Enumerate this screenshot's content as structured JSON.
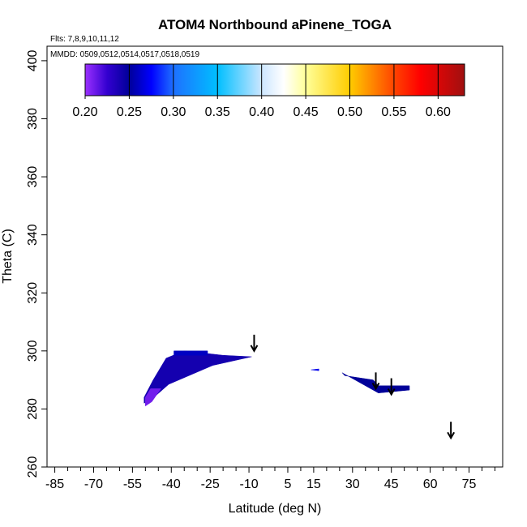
{
  "chart_data": {
    "type": "heatmap",
    "title": "ATOM4 Northbound aPinene_TOGA",
    "flights_note": "Flts: 7,8,9,10,11,12",
    "dates_note": "MMDD: 0509,0512,0514,0517,0518,0519",
    "xlabel": "Latitude (deg N)",
    "ylabel": "Theta (C)",
    "xlim": [
      -88,
      88
    ],
    "ylim": [
      260,
      405
    ],
    "x_ticks": [
      -85,
      -70,
      -55,
      -40,
      -25,
      -10,
      5,
      15,
      30,
      45,
      60,
      75
    ],
    "x_tick_labels": [
      "-85",
      "-70",
      "-55",
      "-40",
      "-25",
      "-10",
      "5",
      "15",
      "30",
      "45",
      "60",
      "75"
    ],
    "x_minor_ticks": [
      -80,
      -75,
      -65,
      -60,
      -50,
      -45,
      -35,
      -30,
      -20,
      -15,
      -5,
      0,
      10,
      20,
      25,
      35,
      40,
      50,
      55,
      65,
      70,
      80,
      85
    ],
    "y_ticks": [
      260,
      280,
      300,
      320,
      340,
      360,
      380,
      400
    ],
    "y_tick_labels": [
      "260",
      "280",
      "300",
      "320",
      "340",
      "360",
      "380",
      "400"
    ],
    "colorbar": {
      "ticks": [
        0.2,
        0.25,
        0.3,
        0.35,
        0.4,
        0.45,
        0.5,
        0.55,
        0.6
      ],
      "tick_labels": [
        "0.20",
        "0.25",
        "0.30",
        "0.35",
        "0.40",
        "0.45",
        "0.50",
        "0.55",
        "0.60"
      ],
      "range": [
        0.2,
        0.63
      ],
      "color_stops": [
        {
          "v": 0.2,
          "c": "#9b30ff"
        },
        {
          "v": 0.225,
          "c": "#3300d0"
        },
        {
          "v": 0.25,
          "c": "#000099"
        },
        {
          "v": 0.275,
          "c": "#0000ff"
        },
        {
          "v": 0.3,
          "c": "#1e70ff"
        },
        {
          "v": 0.35,
          "c": "#00bfff"
        },
        {
          "v": 0.4,
          "c": "#cce6ff"
        },
        {
          "v": 0.425,
          "c": "#ffffff"
        },
        {
          "v": 0.45,
          "c": "#ffff99"
        },
        {
          "v": 0.5,
          "c": "#ffcc00"
        },
        {
          "v": 0.55,
          "c": "#ff4400"
        },
        {
          "v": 0.58,
          "c": "#ff0000"
        },
        {
          "v": 0.63,
          "c": "#a01010"
        }
      ]
    },
    "regions": [
      {
        "name": "southern-slope",
        "value": 0.24,
        "points": [
          [
            -50.5,
            282
          ],
          [
            -48,
            283
          ],
          [
            -41,
            288.5
          ],
          [
            -24,
            295
          ],
          [
            -9,
            298
          ],
          [
            -20,
            298.5
          ],
          [
            -35,
            300
          ],
          [
            -42,
            297.5
          ],
          [
            -47,
            290
          ],
          [
            -50.5,
            284
          ]
        ]
      },
      {
        "name": "southern-upper-band",
        "value": 0.26,
        "points": [
          [
            -39,
            300
          ],
          [
            -26,
            300
          ],
          [
            -26,
            298.5
          ],
          [
            -39,
            298.5
          ]
        ]
      },
      {
        "name": "southern-low-patch",
        "value": 0.21,
        "points": [
          [
            -50,
            281
          ],
          [
            -47.5,
            282.5
          ],
          [
            -44,
            287
          ],
          [
            -48,
            287
          ],
          [
            -50,
            284
          ]
        ]
      },
      {
        "name": "northern-wedge",
        "value": 0.25,
        "points": [
          [
            26,
            292.5
          ],
          [
            40,
            285.5
          ],
          [
            52,
            286.5
          ],
          [
            52,
            288
          ],
          [
            40,
            288
          ],
          [
            38,
            290
          ],
          [
            27,
            291.5
          ]
        ]
      },
      {
        "name": "northern-thin-tail",
        "value": 0.27,
        "points": [
          [
            14,
            293.5
          ],
          [
            17,
            293.2
          ],
          [
            17,
            293.8
          ]
        ]
      }
    ],
    "markers": [
      {
        "name": "arrow-1",
        "lat": -8,
        "theta": 300
      },
      {
        "name": "arrow-2",
        "lat": 39,
        "theta": 287
      },
      {
        "name": "arrow-3",
        "lat": 45,
        "theta": 285
      },
      {
        "name": "arrow-4",
        "lat": 68,
        "theta": 270
      }
    ]
  }
}
